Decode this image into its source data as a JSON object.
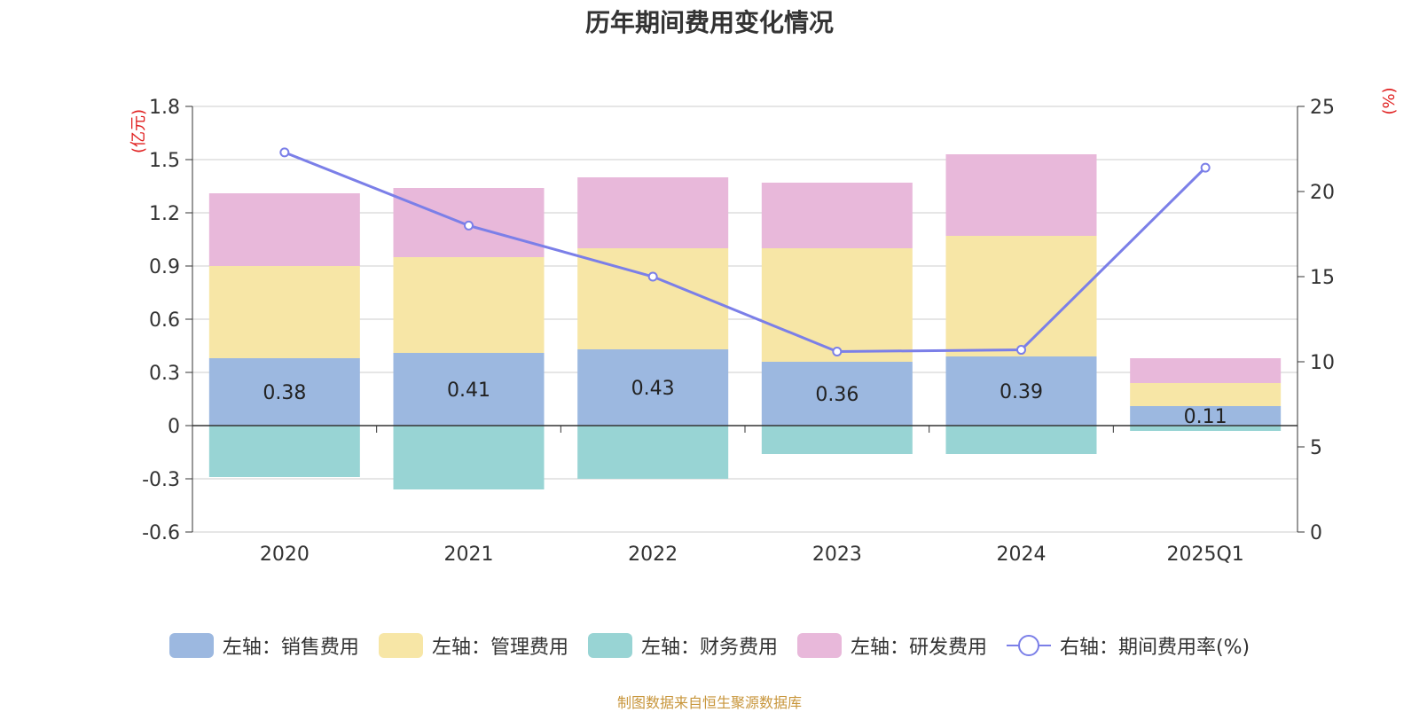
{
  "title": "历年期间费用变化情况",
  "source": "制图数据来自恒生聚源数据库",
  "chart_data": {
    "type": "bar",
    "stacked": true,
    "categories": [
      "2020",
      "2021",
      "2022",
      "2023",
      "2024",
      "2025Q1"
    ],
    "left_axis": {
      "unit": "(亿元)",
      "ylim": [
        -0.6,
        1.8
      ],
      "ticks": [
        -0.6,
        -0.3,
        0,
        0.3,
        0.6,
        0.9,
        1.2,
        1.5,
        1.8
      ]
    },
    "right_axis": {
      "unit": "(%)",
      "ylim": [
        0,
        25
      ],
      "ticks": [
        0,
        5,
        10,
        15,
        20,
        25
      ]
    },
    "series": [
      {
        "name": "左轴：销售费用",
        "color": "#9cb8e0",
        "values": [
          0.38,
          0.41,
          0.43,
          0.36,
          0.39,
          0.11
        ],
        "labels": [
          "0.38",
          "0.41",
          "0.43",
          "0.36",
          "0.39",
          "0.11"
        ]
      },
      {
        "name": "左轴：管理费用",
        "color": "#f7e6a6",
        "values": [
          0.52,
          0.54,
          0.57,
          0.64,
          0.68,
          0.13
        ]
      },
      {
        "name": "左轴：财务费用",
        "color": "#98d4d4",
        "values": [
          -0.29,
          -0.36,
          -0.3,
          -0.16,
          -0.16,
          -0.03
        ]
      },
      {
        "name": "左轴：研发费用",
        "color": "#e8b8da",
        "values": [
          0.41,
          0.39,
          0.4,
          0.37,
          0.46,
          0.14
        ]
      }
    ],
    "line": {
      "name": "右轴：期间费用率(%)",
      "color": "#7b7fe8",
      "values": [
        22.3,
        18.0,
        15.0,
        10.6,
        10.7,
        21.4
      ]
    },
    "grid": true,
    "legend_position": "bottom"
  }
}
